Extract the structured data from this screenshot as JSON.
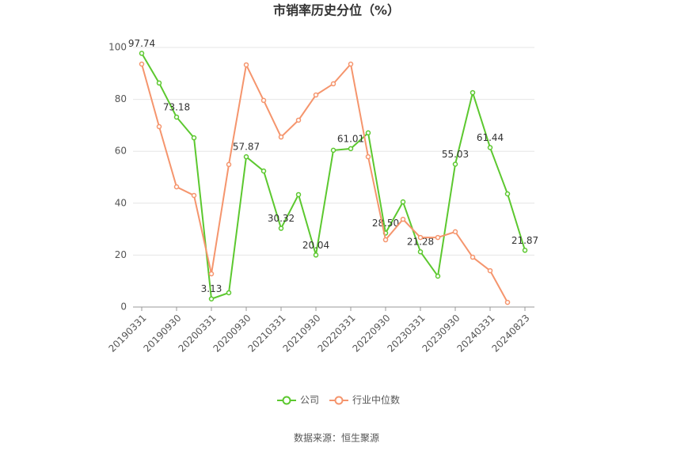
{
  "chart_data": {
    "type": "line",
    "title": "市销率历史分位（%）",
    "source": "数据来源：恒生聚源",
    "categories": [
      "20190331",
      null,
      "20190930",
      null,
      "20200331",
      null,
      "20200930",
      null,
      "20210331",
      null,
      "20210930",
      null,
      "20220331",
      null,
      "20220930",
      null,
      "20230331",
      null,
      "20230930",
      null,
      "20240331",
      null,
      "20240823"
    ],
    "ylim": [
      0,
      100
    ],
    "yticks": [
      0,
      20,
      40,
      60,
      80,
      100
    ],
    "grid": true,
    "legend": "bottom",
    "series": [
      {
        "name": "公司",
        "color": "#5cc82f",
        "values": [
          97.74,
          86.3,
          73.18,
          65.2,
          3.13,
          5.5,
          57.87,
          52.4,
          30.32,
          43.3,
          20.04,
          60.4,
          61.01,
          67.1,
          28.5,
          40.5,
          21.28,
          11.9,
          55.03,
          82.6,
          61.44,
          43.6,
          21.87
        ],
        "value_labels": [
          "97.74",
          null,
          "73.18",
          null,
          "3.13",
          null,
          "57.87",
          null,
          "30.32",
          null,
          "20.04",
          null,
          "61.01",
          null,
          "28.50",
          null,
          "21.28",
          null,
          "55.03",
          null,
          "61.44",
          null,
          "21.87"
        ]
      },
      {
        "name": "行业中位数",
        "color": "#f5956d",
        "values": [
          93.6,
          69.5,
          46.3,
          43.0,
          12.8,
          54.9,
          93.3,
          79.6,
          65.5,
          72.0,
          81.7,
          86.0,
          93.6,
          57.9,
          25.9,
          33.8,
          26.8,
          26.8,
          29.0,
          19.2,
          14.0,
          1.8,
          null
        ]
      }
    ]
  }
}
